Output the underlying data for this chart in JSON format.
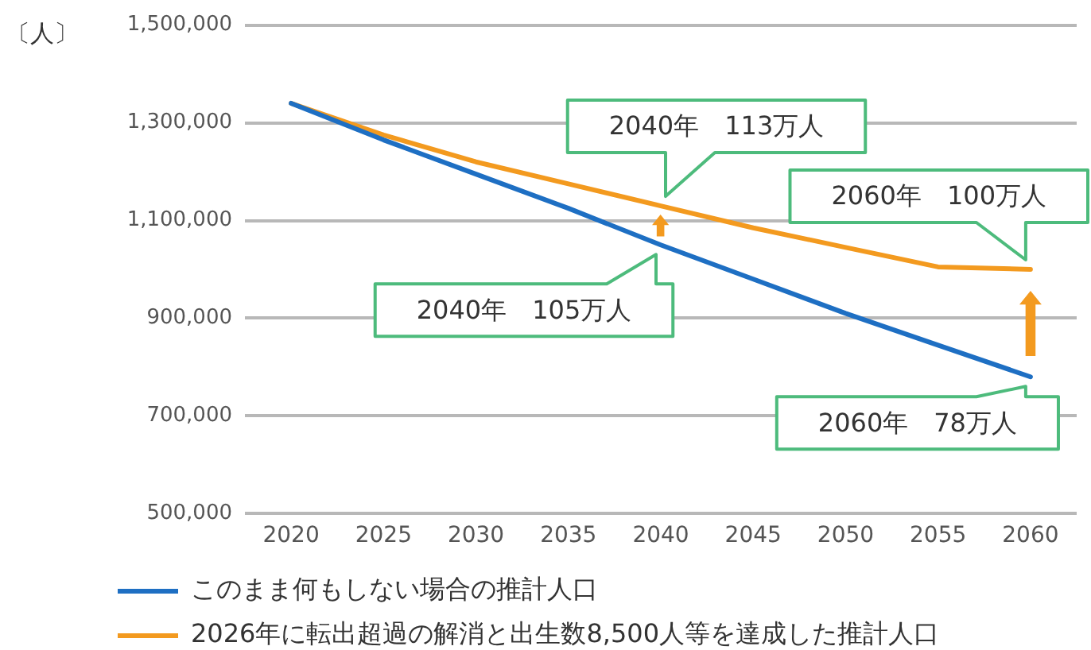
{
  "chart_data": {
    "type": "line",
    "ylabel": "〔人〕",
    "categories": [
      "2020",
      "2025",
      "2030",
      "2035",
      "2040",
      "2045",
      "2050",
      "2055",
      "2060"
    ],
    "series": [
      {
        "name": "このまま何もしない場合の推計人口",
        "color": "#1e6fc3",
        "values": [
          1340000,
          1265000,
          1195000,
          1125000,
          1050000,
          980000,
          910000,
          845000,
          780000
        ]
      },
      {
        "name": "2026年に転出超過の解消と出生数8,500人等を達成した推計人口",
        "color": "#f39a1f",
        "values": [
          1340000,
          1275000,
          1220000,
          1175000,
          1130000,
          1085000,
          1045000,
          1005000,
          1000000
        ]
      }
    ],
    "ylim": [
      500000,
      1500000
    ],
    "yticks": [
      {
        "value": 500000,
        "label": "500,000"
      },
      {
        "value": 700000,
        "label": "700,000"
      },
      {
        "value": 900000,
        "label": "900,000"
      },
      {
        "value": 1100000,
        "label": "1,100,000"
      },
      {
        "value": 1300000,
        "label": "1,300,000"
      },
      {
        "value": 1500000,
        "label": "1,500,000"
      }
    ],
    "grid": "y",
    "legend": "bottom",
    "marker": "none",
    "line_style": "solid",
    "annotations": [
      {
        "text": "2040年　113万人",
        "x": "2040",
        "y": 1130000
      },
      {
        "text": "2040年　105万人",
        "x": "2040",
        "y": 1050000
      },
      {
        "text": "2060年　100万人",
        "x": "2060",
        "y": 1000000
      },
      {
        "text": "2060年　78万人",
        "x": "2060",
        "y": 780000
      }
    ]
  }
}
